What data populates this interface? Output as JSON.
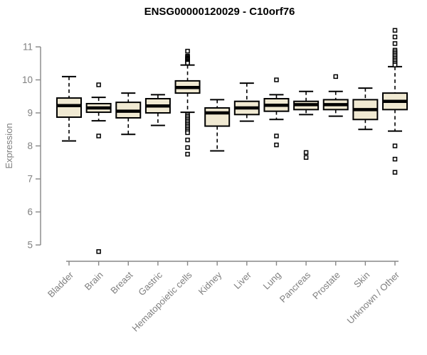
{
  "chart_data": {
    "type": "boxplot",
    "title": "ENSG00000120029 - C10orf76",
    "ylabel": "Expression",
    "xlabel": "",
    "ylim": [
      5,
      11
    ],
    "yticks": [
      5,
      6,
      7,
      8,
      9,
      10,
      11
    ],
    "grid": false,
    "legend": "none",
    "categories": [
      "Bladder",
      "Brain",
      "Breast",
      "Gastric",
      "Hematopoietic cells",
      "Kidney",
      "Liver",
      "Lung",
      "Pancreas",
      "Prostate",
      "Skin",
      "Unknown / Other"
    ],
    "series": [
      {
        "name": "Bladder",
        "low": 8.15,
        "q1": 8.87,
        "median": 9.22,
        "q3": 9.45,
        "high": 10.1,
        "outliers": []
      },
      {
        "name": "Brain",
        "low": 8.76,
        "q1": 9.02,
        "median": 9.15,
        "q3": 9.28,
        "high": 9.47,
        "outliers": [
          9.85,
          8.3,
          4.8
        ]
      },
      {
        "name": "Breast",
        "low": 8.35,
        "q1": 8.85,
        "median": 9.05,
        "q3": 9.32,
        "high": 9.6,
        "outliers": []
      },
      {
        "name": "Gastric",
        "low": 8.62,
        "q1": 9.0,
        "median": 9.21,
        "q3": 9.43,
        "high": 9.55,
        "outliers": []
      },
      {
        "name": "Hematopoietic cells",
        "low": 9.02,
        "q1": 9.6,
        "median": 9.77,
        "q3": 9.97,
        "high": 10.45,
        "outliers": [
          10.87,
          10.72,
          10.69,
          10.66,
          10.63,
          10.6,
          10.57,
          10.54,
          10.51,
          8.95,
          8.9,
          8.85,
          8.8,
          8.75,
          8.7,
          8.65,
          8.6,
          8.55,
          8.5,
          8.45,
          8.4,
          8.18,
          7.95,
          7.75
        ]
      },
      {
        "name": "Kidney",
        "low": 7.85,
        "q1": 8.6,
        "median": 9.0,
        "q3": 9.15,
        "high": 9.4,
        "outliers": []
      },
      {
        "name": "Liver",
        "low": 8.75,
        "q1": 8.95,
        "median": 9.15,
        "q3": 9.35,
        "high": 9.9,
        "outliers": []
      },
      {
        "name": "Lung",
        "low": 8.8,
        "q1": 9.05,
        "median": 9.23,
        "q3": 9.43,
        "high": 9.55,
        "outliers": [
          10.0,
          8.3,
          8.03
        ]
      },
      {
        "name": "Pancreas",
        "low": 8.95,
        "q1": 9.1,
        "median": 9.25,
        "q3": 9.35,
        "high": 9.65,
        "outliers": [
          7.8,
          7.65
        ]
      },
      {
        "name": "Prostate",
        "low": 8.9,
        "q1": 9.1,
        "median": 9.25,
        "q3": 9.4,
        "high": 9.65,
        "outliers": [
          10.1
        ]
      },
      {
        "name": "Skin",
        "low": 8.5,
        "q1": 8.8,
        "median": 9.1,
        "q3": 9.4,
        "high": 9.75,
        "outliers": []
      },
      {
        "name": "Unknown / Other",
        "low": 8.45,
        "q1": 9.1,
        "median": 9.35,
        "q3": 9.6,
        "high": 10.4,
        "outliers": [
          11.5,
          11.3,
          11.1,
          10.9,
          10.85,
          10.8,
          10.75,
          10.7,
          10.65,
          10.6,
          10.55,
          10.5,
          10.45,
          8.0,
          7.6,
          7.2
        ]
      }
    ],
    "colors": {
      "box_fill": "#f0e9d2",
      "box_border": "#000000",
      "median": "#000000",
      "whisker": "#000000",
      "outlier_fill": "#ffffff",
      "outlier_border": "#000000",
      "axis": "#878787",
      "tick_label": "#7f7f7f",
      "title": "#000000",
      "background": "#ffffff"
    }
  }
}
